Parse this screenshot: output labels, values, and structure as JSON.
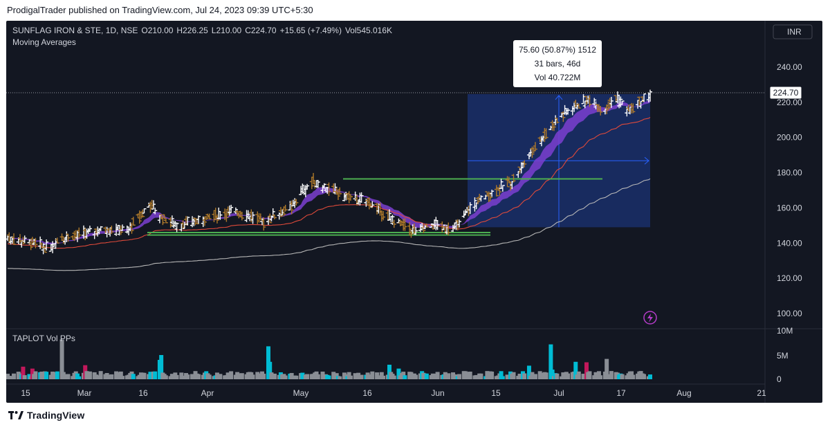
{
  "header": {
    "published": "ProdigalTrader published on TradingView.com, Jul 24, 2023 09:39 UTC+5:30"
  },
  "legend": {
    "symbol": "SUNFLAG IRON & STE, 1D, NSE",
    "o_label": "O",
    "o_value": "210.00",
    "h_label": "H",
    "h_value": "226.25",
    "l_label": "L",
    "l_value": "210.00",
    "c_label": "C",
    "c_value": "224.70",
    "change": "+15.65 (+7.49%)",
    "vol_label": "Vol",
    "vol_value": "545.016K",
    "indicator": "Moving Averages"
  },
  "currency": "INR",
  "volume_pane": {
    "title": "TAPLOT Vol PPs"
  },
  "measure_tooltip": {
    "line1": "75.60 (50.87%) 1512",
    "line2": "31 bars, 46d",
    "line3": "Vol 40.722M"
  },
  "last_price_label": "224.70",
  "colors": {
    "background": "#131722",
    "up_bar": "#ffffff",
    "down_bar": "#b07a2a",
    "ema_band": "#7b3fd0",
    "ma_red": "#e04a3a",
    "ma_gray": "#b7b7b7",
    "levels": "#4caf50",
    "measure": "#2962ff",
    "vol_cyan": "#00bcd4",
    "vol_red": "#c2185b",
    "vol_gray": "#8a8e95"
  },
  "branding": {
    "logo": "TradingView"
  },
  "chart_data": {
    "type": "ohlc",
    "y_axis": {
      "min": 95,
      "max": 245,
      "ticks": [
        "240.00",
        "220.00",
        "200.00",
        "180.00",
        "160.00",
        "140.00",
        "120.00",
        "100.00"
      ]
    },
    "x_axis": {
      "ticks": [
        "15",
        "Mar",
        "16",
        "Apr",
        "May",
        "16",
        "Jun",
        "15",
        "Jul",
        "17",
        "Aug",
        "21"
      ]
    },
    "volume_axis": {
      "ticks": [
        "10M",
        "5M",
        "0"
      ]
    },
    "last_price": 224.7,
    "horizontal_levels": [
      176.5,
      146.0,
      144.6
    ],
    "measure": {
      "from": 149,
      "to": 224.7,
      "change": 75.6,
      "percent": 50.87,
      "bars": 31,
      "days": 46
    }
  }
}
